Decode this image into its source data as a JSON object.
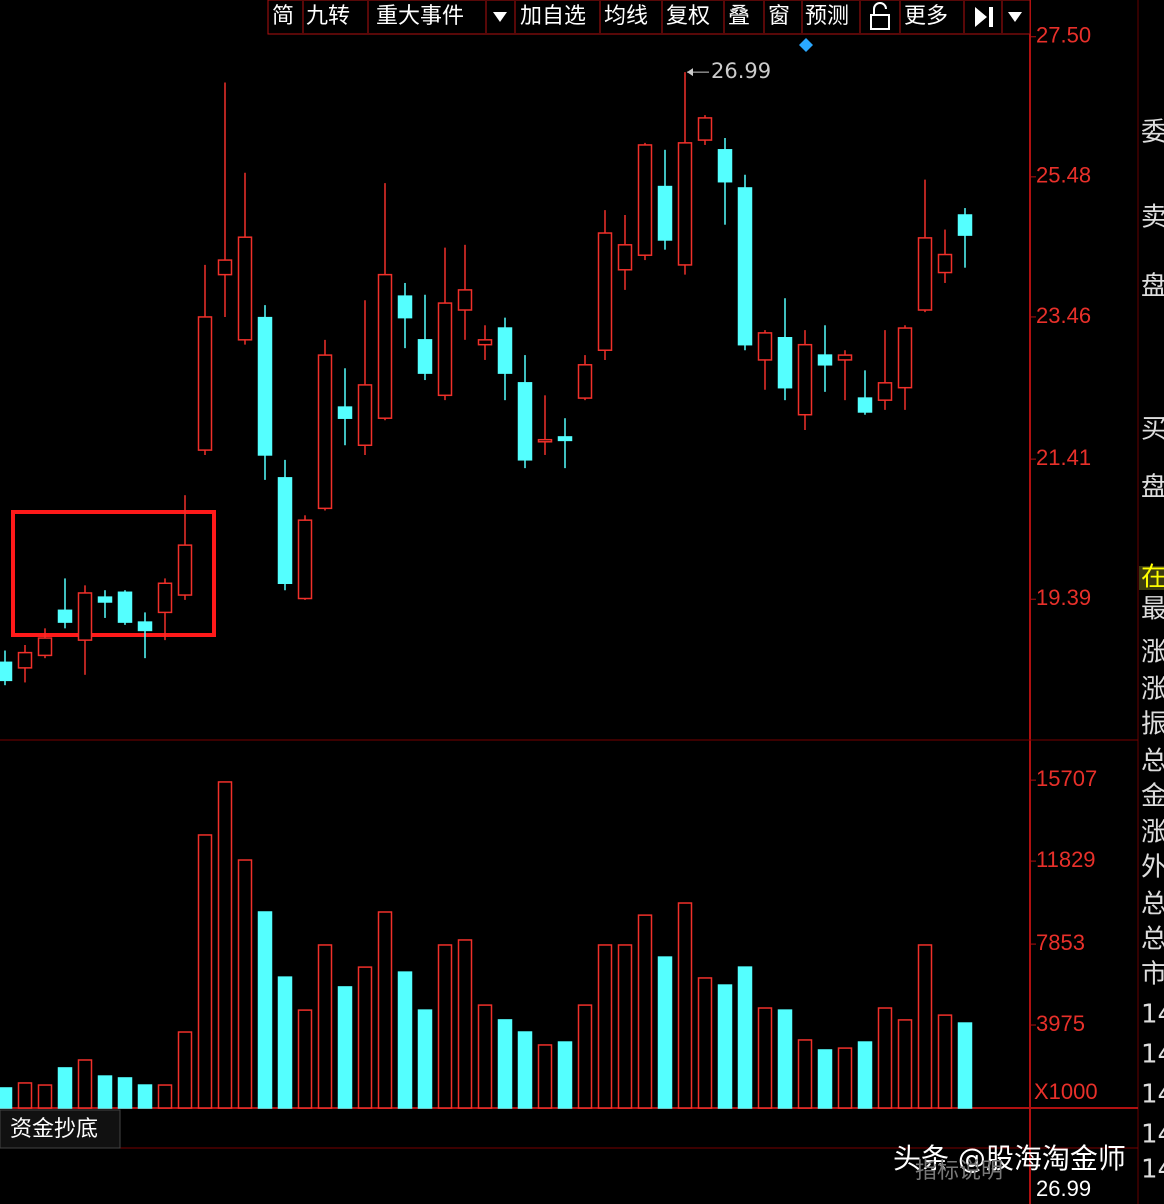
{
  "toolbar": [
    "简",
    "九转",
    "重大事件",
    "加自选",
    "均线",
    "复权",
    "叠",
    "窗",
    "预测",
    "更多"
  ],
  "side_panel": [
    "委",
    "卖",
    "盘",
    "买",
    "盘",
    "在",
    "最",
    "涨",
    "涨",
    "振",
    "总",
    "金",
    "涨",
    "外",
    "总",
    "总",
    "市",
    "14",
    "14",
    "14",
    "14",
    "14"
  ],
  "indicator_tab": "资金抄底",
  "indicator_note": "指标说明",
  "watermark": "头条 @股海淘金师",
  "bottom_axis_label": "26.99",
  "chart_data": [
    {
      "type": "candlestick",
      "max_annotation": "26.99",
      "up_color": "#f0302a",
      "down_color": "#54ffff",
      "open": [
        18.48,
        18.4,
        18.58,
        19.23,
        18.8,
        19.42,
        19.49,
        19.06,
        19.2,
        19.45,
        21.54,
        24.07,
        23.13,
        23.45,
        21.14,
        19.4,
        20.7,
        22.16,
        21.61,
        22.0,
        23.76,
        23.13,
        22.33,
        23.56,
        23.06,
        23.3,
        22.51,
        21.66,
        21.73,
        22.29,
        22.98,
        24.14,
        24.35,
        25.34,
        24.21,
        26.01,
        25.87,
        25.32,
        22.84,
        23.16,
        22.05,
        22.91,
        22.84,
        22.29,
        22.26,
        22.44,
        23.56,
        24.1,
        24.93
      ],
      "high": [
        18.65,
        18.73,
        18.97,
        19.69,
        19.59,
        19.52,
        19.52,
        19.2,
        19.69,
        20.89,
        24.21,
        26.84,
        25.54,
        23.63,
        21.4,
        20.6,
        23.13,
        22.72,
        23.7,
        25.39,
        23.95,
        23.78,
        24.46,
        24.5,
        23.34,
        23.45,
        22.91,
        22.33,
        22.0,
        22.91,
        25.0,
        24.93,
        25.97,
        25.87,
        26.99,
        26.37,
        26.04,
        25.51,
        23.27,
        23.73,
        23.27,
        23.34,
        22.98,
        22.69,
        23.27,
        23.34,
        25.44,
        24.72,
        25.03
      ],
      "low": [
        18.15,
        18.19,
        18.54,
        18.97,
        18.3,
        19.12,
        19.02,
        18.54,
        18.8,
        19.38,
        21.47,
        23.46,
        23.06,
        21.11,
        19.52,
        19.38,
        20.67,
        21.61,
        21.47,
        21.97,
        23.01,
        22.55,
        22.26,
        23.13,
        22.84,
        22.26,
        21.28,
        21.47,
        21.28,
        22.26,
        22.84,
        23.85,
        24.28,
        24.43,
        24.07,
        25.94,
        24.79,
        22.98,
        22.41,
        22.26,
        21.83,
        22.38,
        22.26,
        22.05,
        22.12,
        22.12,
        23.53,
        23.95,
        24.17
      ],
      "close": [
        18.22,
        18.62,
        18.83,
        19.06,
        19.48,
        19.35,
        19.06,
        18.94,
        19.62,
        20.17,
        23.46,
        24.28,
        24.61,
        21.47,
        19.62,
        20.53,
        22.91,
        22.0,
        22.48,
        24.07,
        23.45,
        22.65,
        23.66,
        23.85,
        23.13,
        22.65,
        21.4,
        21.69,
        21.68,
        22.77,
        24.67,
        24.5,
        25.94,
        24.57,
        25.97,
        26.33,
        25.41,
        23.06,
        23.23,
        22.44,
        23.06,
        22.77,
        22.91,
        22.09,
        22.51,
        23.3,
        24.6,
        24.36,
        24.64
      ],
      "ylim": [
        17.36,
        28.03
      ],
      "yticks": [
        {
          "value": 27.5,
          "label": "27.50"
        },
        25.48,
        23.46,
        21.41,
        19.39
      ]
    },
    {
      "type": "volume",
      "unit_label": "X1000",
      "up_color": "#f0302a",
      "down_color": "#54ffff",
      "values": [
        960,
        1200,
        1100,
        1920,
        2300,
        1530,
        1440,
        1100,
        1100,
        3640,
        13080,
        15620,
        11880,
        9390,
        6270,
        4690,
        7810,
        5800,
        6750,
        9390,
        6510,
        4690,
        7810,
        8050,
        4930,
        4220,
        3640,
        3020,
        3160,
        4930,
        7810,
        7810,
        9240,
        7230,
        9820,
        6230,
        5890,
        6750,
        4790,
        4690,
        3260,
        2780,
        2870,
        3160,
        4790,
        4220,
        7810,
        4450,
        4070
      ],
      "ylim": [
        0,
        17390
      ],
      "yticks": [
        3975,
        7853,
        11829,
        15707
      ]
    }
  ]
}
